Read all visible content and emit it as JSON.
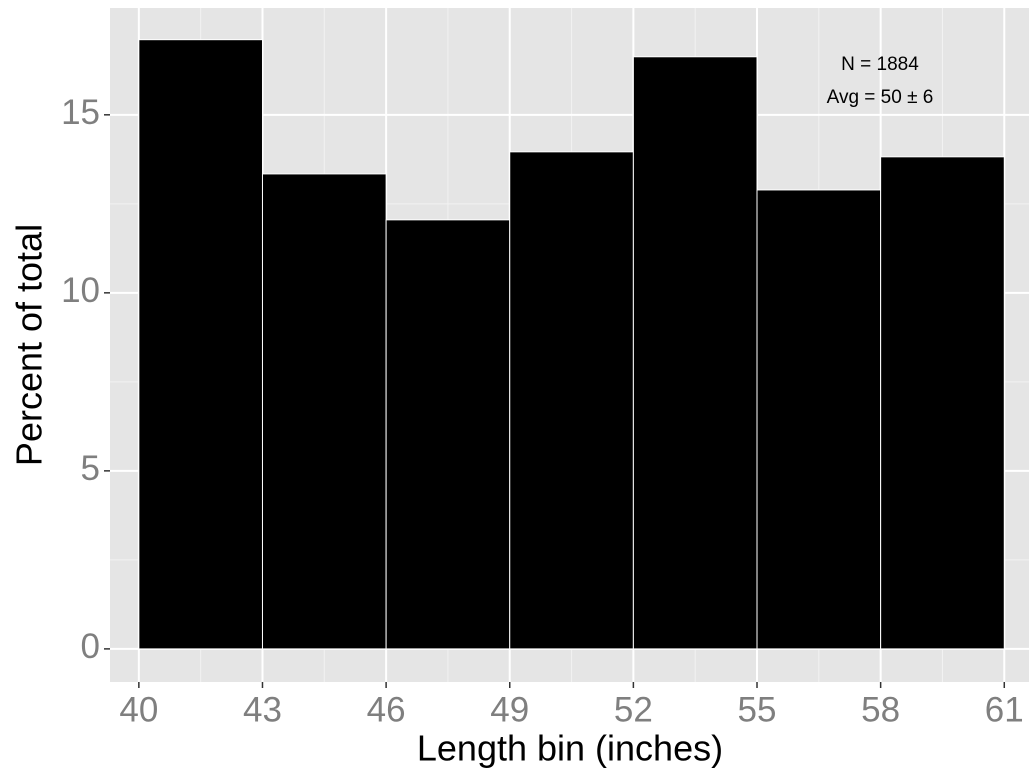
{
  "chart_data": {
    "type": "histogram",
    "x_label": "Length bin (inches)",
    "y_label": "Percent of total",
    "annotations": [
      "N = 1884",
      "Avg = 50 ± 6"
    ],
    "bins": [
      40,
      43,
      46,
      49,
      52,
      55,
      58,
      61
    ],
    "values": [
      17.11,
      13.34,
      12.05,
      13.96,
      16.63,
      12.89,
      13.82
    ],
    "color": "#000000",
    "xlim": [
      39.3,
      61.6
    ],
    "ylim": [
      -0.93,
      18
    ],
    "xticks": [
      40,
      43,
      46,
      49,
      52,
      55,
      58,
      61
    ],
    "yticks": [
      0,
      5,
      10,
      15
    ],
    "grid": true
  }
}
